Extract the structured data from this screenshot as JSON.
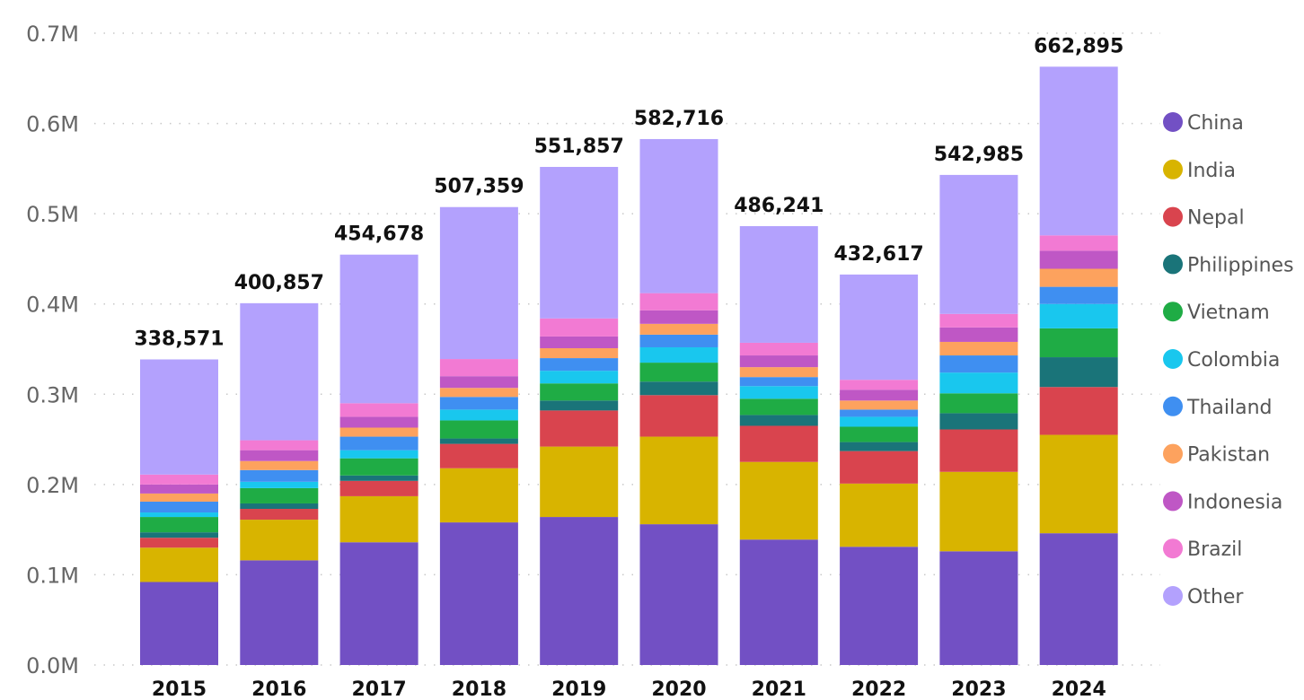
{
  "chart_data": {
    "type": "bar",
    "stacked": true,
    "categories": [
      "2015",
      "2016",
      "2017",
      "2018",
      "2019",
      "2020",
      "2021",
      "2022",
      "2023",
      "2024"
    ],
    "totals": [
      "338,571",
      "400,857",
      "454,678",
      "507,359",
      "551,857",
      "582,716",
      "486,241",
      "432,617",
      "542,985",
      "662,895"
    ],
    "total_values": [
      338571,
      400857,
      454678,
      507359,
      551857,
      582716,
      486241,
      432617,
      542985,
      662895
    ],
    "ylim": [
      0,
      700000
    ],
    "yticks": [
      {
        "value": 0,
        "label": "0.0M"
      },
      {
        "value": 100000,
        "label": "0.1M"
      },
      {
        "value": 200000,
        "label": "0.2M"
      },
      {
        "value": 300000,
        "label": "0.3M"
      },
      {
        "value": 400000,
        "label": "0.4M"
      },
      {
        "value": 500000,
        "label": "0.5M"
      },
      {
        "value": 600000,
        "label": "0.6M"
      },
      {
        "value": 700000,
        "label": "0.7M"
      }
    ],
    "grid": true,
    "legend_position": "right",
    "series": [
      {
        "name": "China",
        "color": "#7250c4",
        "values": [
          92000,
          116000,
          136000,
          158000,
          164000,
          156000,
          139000,
          131000,
          126000,
          146000
        ]
      },
      {
        "name": "India",
        "color": "#d8b400",
        "values": [
          38000,
          45000,
          51000,
          60000,
          78000,
          97000,
          86000,
          70000,
          88000,
          109000
        ]
      },
      {
        "name": "Nepal",
        "color": "#d9444e",
        "values": [
          11000,
          12000,
          17000,
          27000,
          40000,
          46000,
          40000,
          36000,
          47000,
          53000
        ]
      },
      {
        "name": "Philippines",
        "color": "#1a7479",
        "values": [
          6000,
          6000,
          6000,
          6000,
          11000,
          15000,
          12000,
          10000,
          18000,
          33000
        ]
      },
      {
        "name": "Vietnam",
        "color": "#1fac45",
        "values": [
          17000,
          17000,
          19000,
          20000,
          19000,
          21000,
          18000,
          17000,
          22000,
          32000
        ]
      },
      {
        "name": "Colombia",
        "color": "#19c7ee",
        "values": [
          5000,
          7000,
          9000,
          12000,
          14000,
          17000,
          14000,
          11000,
          23000,
          27000
        ]
      },
      {
        "name": "Thailand",
        "color": "#3f8ff1",
        "values": [
          12000,
          13000,
          15000,
          14000,
          14000,
          14000,
          10000,
          8000,
          19000,
          19000
        ]
      },
      {
        "name": "Pakistan",
        "color": "#fda25e",
        "values": [
          9000,
          10000,
          10000,
          10000,
          11000,
          12000,
          11000,
          10000,
          15000,
          20000
        ]
      },
      {
        "name": "Indonesia",
        "color": "#bf57c5",
        "values": [
          10000,
          12000,
          12000,
          13000,
          13000,
          15000,
          13000,
          12000,
          16000,
          20000
        ]
      },
      {
        "name": "Brazil",
        "color": "#f27ad3",
        "values": [
          11000,
          11000,
          15000,
          19000,
          20000,
          19000,
          14000,
          11000,
          15000,
          17000
        ]
      },
      {
        "name": "Other",
        "color": "#b3a1fd",
        "values": [
          127571,
          151857,
          164678,
          168359,
          167857,
          170716,
          129241,
          116617,
          153985,
          186895
        ]
      }
    ]
  }
}
